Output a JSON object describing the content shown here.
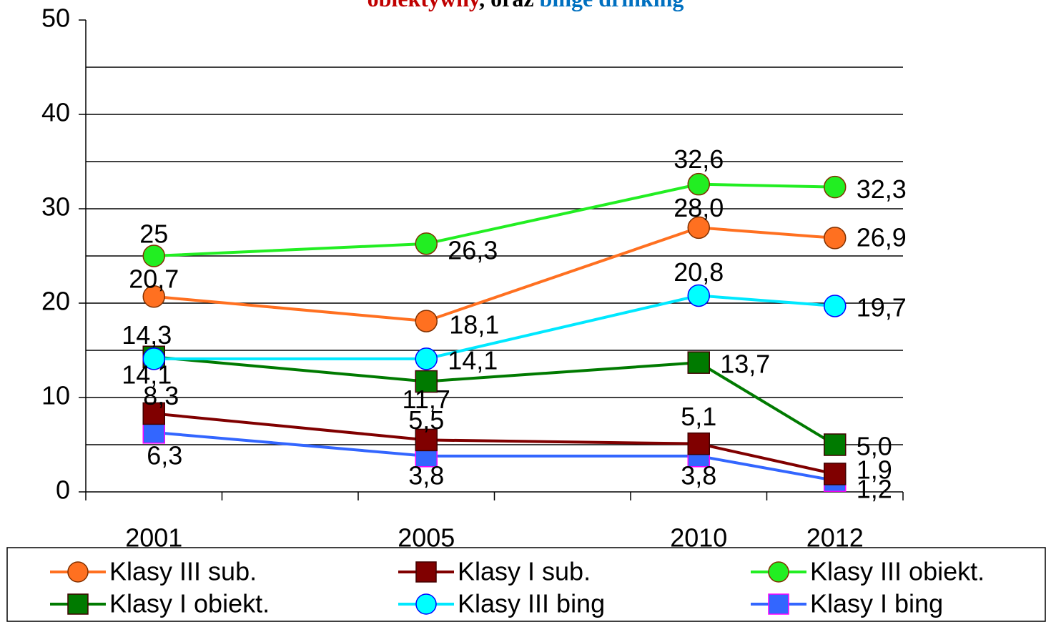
{
  "chart_data": {
    "type": "line",
    "title": [
      {
        "text": "obiektywny",
        "color": "#c00000"
      },
      {
        "text": ", oraz ",
        "color": "#000000"
      },
      {
        "text": "binge drinking",
        "color": "#0070c0"
      }
    ],
    "categories": [
      "2001",
      "2005",
      "2010",
      "2012"
    ],
    "ylim": [
      0,
      50
    ],
    "yticks": [
      0,
      10,
      20,
      30,
      40,
      50
    ],
    "ygrid": [
      5,
      10,
      15,
      20,
      25,
      30,
      35,
      40,
      45
    ],
    "series": [
      {
        "name": "Klasy III sub.",
        "color": "#ff7020",
        "marker": "circle",
        "values": [
          20.7,
          18.1,
          28.0,
          26.9
        ],
        "value_labels": [
          "20,7",
          "18,1",
          "28,0",
          "26,9"
        ]
      },
      {
        "name": "Klasy I sub.",
        "color": "#800000",
        "marker": "square",
        "values": [
          8.3,
          5.5,
          5.1,
          1.9
        ],
        "value_labels": [
          "8,3",
          "5,5",
          "5,1",
          "1,9"
        ]
      },
      {
        "name": "Klasy III obiekt.",
        "color": "#22ee22",
        "marker": "circle",
        "values": [
          25,
          26.3,
          32.6,
          32.3
        ],
        "value_labels": [
          "25",
          "26,3",
          "32,6",
          "32,3"
        ]
      },
      {
        "name": "Klasy I obiekt.",
        "color": "#007a00",
        "marker": "square",
        "values": [
          14.3,
          11.7,
          13.7,
          5.0
        ],
        "value_labels": [
          "14,3",
          "11,7",
          "13,7",
          "5,0"
        ]
      },
      {
        "name": "Klasy III bing",
        "color": "#00ffff",
        "marker": "circle",
        "values": [
          14.1,
          14.1,
          20.8,
          19.7
        ],
        "value_labels": [
          "14,1",
          "14,1",
          "20,8",
          "19,7"
        ]
      },
      {
        "name": "Klasy I bing",
        "color": "#3366ff",
        "marker": "square",
        "values": [
          6.3,
          3.8,
          3.8,
          1.2
        ],
        "value_labels": [
          "6,3",
          "3,8",
          "3,8",
          "1,2"
        ]
      }
    ]
  }
}
